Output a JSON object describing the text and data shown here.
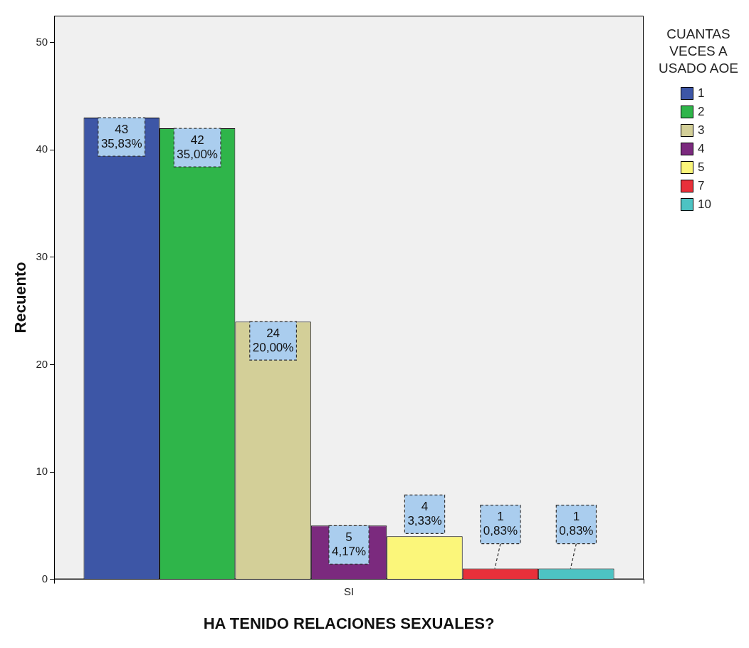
{
  "chart_data": {
    "type": "bar",
    "xlabel": "HA TENIDO RELACIONES SEXUALES?",
    "ylabel": "Recuento",
    "legend_title": "CUANTAS VECES A USADO AOE",
    "legend": "top right",
    "categories": [
      "SI"
    ],
    "ylim": [
      0,
      52.5
    ],
    "yticks": [
      0,
      10,
      20,
      30,
      40,
      50
    ],
    "series": [
      {
        "name": "1",
        "color": "#3d56a6",
        "values": [
          43
        ],
        "value_labels": [
          "43\n35,83%"
        ]
      },
      {
        "name": "2",
        "color": "#2fb54a",
        "values": [
          42
        ],
        "value_labels": [
          "42\n35,00%"
        ]
      },
      {
        "name": "3",
        "color": "#d3cf98",
        "values": [
          24
        ],
        "value_labels": [
          "24\n20,00%"
        ]
      },
      {
        "name": "4",
        "color": "#7b2a7e",
        "values": [
          5
        ],
        "value_labels": [
          "5\n4,17%"
        ]
      },
      {
        "name": "5",
        "color": "#fbf67a",
        "values": [
          4
        ],
        "value_labels": [
          "4\n3,33%"
        ]
      },
      {
        "name": "7",
        "color": "#e8303a",
        "values": [
          1
        ],
        "value_labels": [
          "1\n0,83%"
        ]
      },
      {
        "name": "10",
        "color": "#4dc3c3",
        "values": [
          1
        ],
        "value_labels": [
          "1\n0,83%"
        ]
      }
    ]
  }
}
